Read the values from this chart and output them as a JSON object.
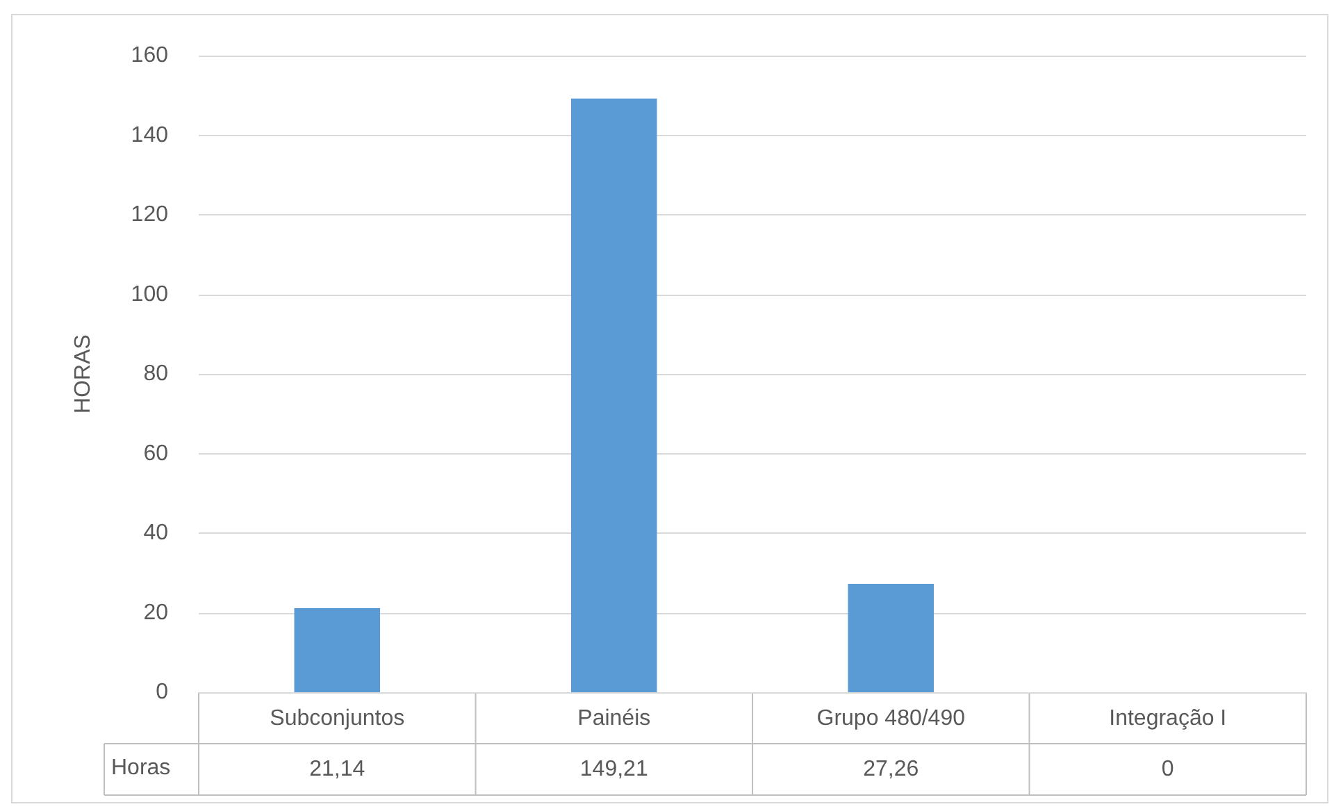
{
  "chart_data": {
    "type": "bar",
    "ylabel": "HORAS",
    "categories": [
      "Subconjuntos",
      "Painéis",
      "Grupo 480/490",
      "Integração I"
    ],
    "series": [
      {
        "name": "Horas",
        "color": "#5b9bd5",
        "values": [
          21.14,
          149.21,
          27.26,
          0
        ],
        "value_labels": [
          "21,14",
          "149,21",
          "27,26",
          "0"
        ]
      }
    ],
    "ylim": [
      0,
      160
    ],
    "yticks": [
      0,
      20,
      40,
      60,
      80,
      100,
      120,
      140,
      160
    ],
    "grid": "y",
    "legend": false
  }
}
